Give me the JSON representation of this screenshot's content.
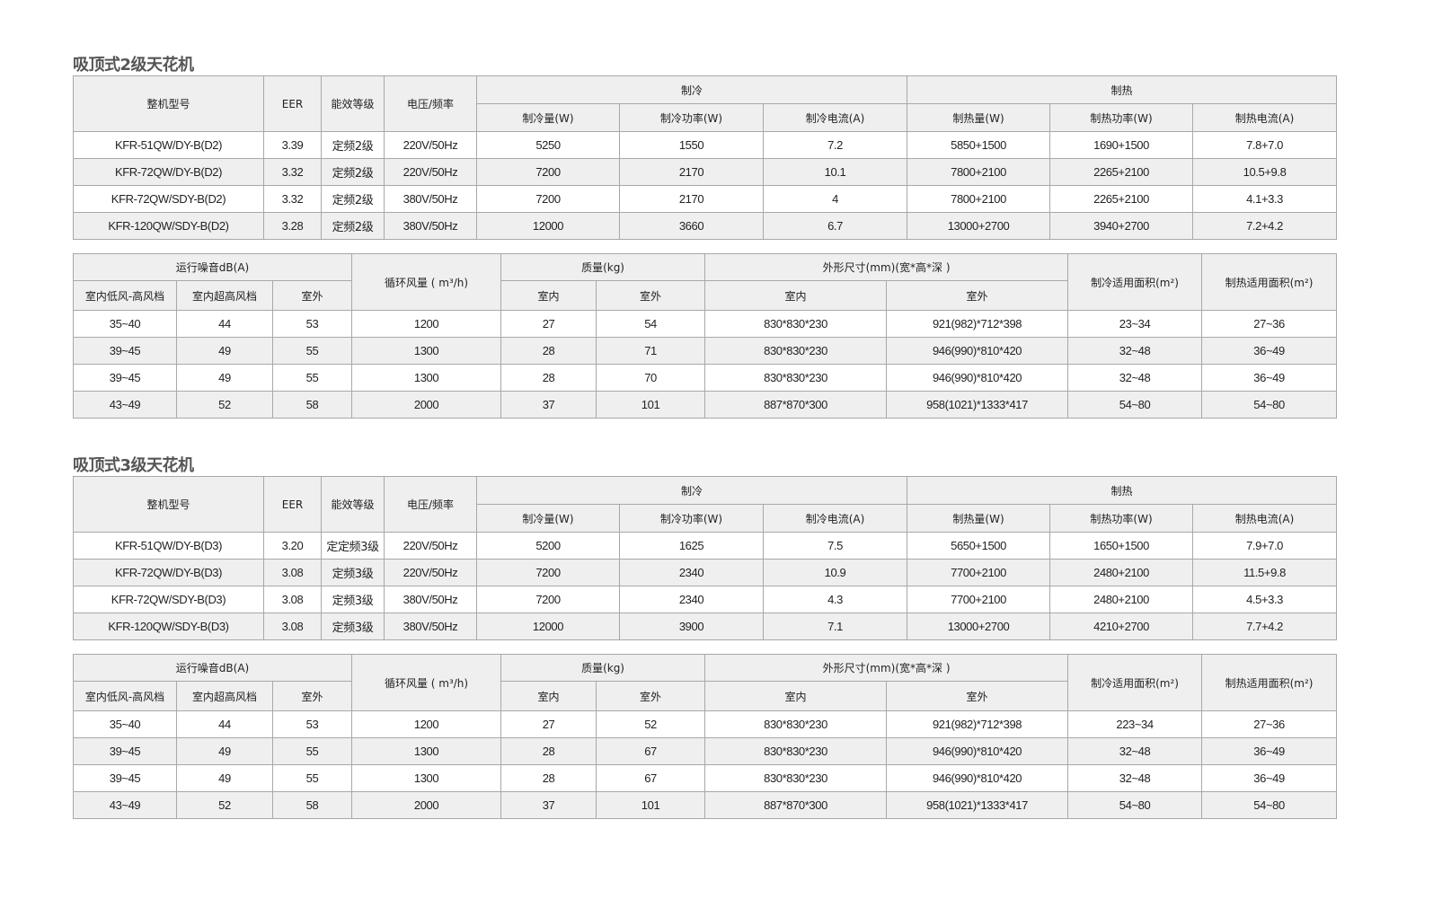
{
  "headers_a": {
    "model": "整机型号",
    "eer": "EER",
    "grade": "能效等级",
    "voltage": "电压/频率",
    "cooling": "制冷",
    "heating": "制热",
    "cool_cap": "制冷量(W)",
    "cool_power": "制冷功率(W)",
    "cool_current": "制冷电流(A)",
    "heat_cap": "制热量(W)",
    "heat_power": "制热功率(W)",
    "heat_current": "制热电流(A)"
  },
  "headers_b": {
    "noise": "运行噪音dB(A)",
    "noise_low_high": "室内低风-高风档",
    "noise_super": "室内超高风档",
    "noise_outdoor": "室外",
    "airflow": "循环风量 ( m³/h)",
    "mass": "质量(kg)",
    "mass_indoor": "室内",
    "mass_outdoor": "室外",
    "dims": "外形尺寸(mm)(宽*高*深 )",
    "dims_indoor": "室内",
    "dims_outdoor": "室外",
    "cool_area": "制冷适用面积(m²)",
    "heat_area": "制热适用面积(m²)"
  },
  "sections": [
    {
      "title": "吸顶式2级天花机",
      "table_a": [
        [
          "KFR-51QW/DY-B(D2)",
          "3.39",
          "定频2级",
          "220V/50Hz",
          "5250",
          "1550",
          "7.2",
          "5850+1500",
          "1690+1500",
          "7.8+7.0"
        ],
        [
          "KFR-72QW/DY-B(D2)",
          "3.32",
          "定频2级",
          "220V/50Hz",
          "7200",
          "2170",
          "10.1",
          "7800+2100",
          "2265+2100",
          "10.5+9.8"
        ],
        [
          "KFR-72QW/SDY-B(D2)",
          "3.32",
          "定频2级",
          "380V/50Hz",
          "7200",
          "2170",
          "4",
          "7800+2100",
          "2265+2100",
          "4.1+3.3"
        ],
        [
          "KFR-120QW/SDY-B(D2)",
          "3.28",
          "定频2级",
          "380V/50Hz",
          "12000",
          "3660",
          "6.7",
          "13000+2700",
          "3940+2700",
          "7.2+4.2"
        ]
      ],
      "table_b": [
        [
          "35~40",
          "44",
          "53",
          "1200",
          "27",
          "54",
          "830*830*230",
          "921(982)*712*398",
          "23~34",
          "27~36"
        ],
        [
          "39~45",
          "49",
          "55",
          "1300",
          "28",
          "71",
          "830*830*230",
          "946(990)*810*420",
          "32~48",
          "36~49"
        ],
        [
          "39~45",
          "49",
          "55",
          "1300",
          "28",
          "70",
          "830*830*230",
          "946(990)*810*420",
          "32~48",
          "36~49"
        ],
        [
          "43~49",
          "52",
          "58",
          "2000",
          "37",
          "101",
          "887*870*300",
          "958(1021)*1333*417",
          "54~80",
          "54~80"
        ]
      ]
    },
    {
      "title": "吸顶式3级天花机",
      "table_a": [
        [
          "KFR-51QW/DY-B(D3)",
          "3.20",
          "定定频3级",
          "220V/50Hz",
          "5200",
          "1625",
          "7.5",
          "5650+1500",
          "1650+1500",
          "7.9+7.0"
        ],
        [
          "KFR-72QW/DY-B(D3)",
          "3.08",
          "定频3级",
          "220V/50Hz",
          "7200",
          "2340",
          "10.9",
          "7700+2100",
          "2480+2100",
          "11.5+9.8"
        ],
        [
          "KFR-72QW/SDY-B(D3)",
          "3.08",
          "定频3级",
          "380V/50Hz",
          "7200",
          "2340",
          "4.3",
          "7700+2100",
          "2480+2100",
          "4.5+3.3"
        ],
        [
          "KFR-120QW/SDY-B(D3)",
          "3.08",
          "定频3级",
          "380V/50Hz",
          "12000",
          "3900",
          "7.1",
          "13000+2700",
          "4210+2700",
          "7.7+4.2"
        ]
      ],
      "table_b": [
        [
          "35~40",
          "44",
          "53",
          "1200",
          "27",
          "52",
          "830*830*230",
          "921(982)*712*398",
          "223~34",
          "27~36"
        ],
        [
          "39~45",
          "49",
          "55",
          "1300",
          "28",
          "67",
          "830*830*230",
          "946(990)*810*420",
          "32~48",
          "36~49"
        ],
        [
          "39~45",
          "49",
          "55",
          "1300",
          "28",
          "67",
          "830*830*230",
          "946(990)*810*420",
          "32~48",
          "36~49"
        ],
        [
          "43~49",
          "52",
          "58",
          "2000",
          "37",
          "101",
          "887*870*300",
          "958(1021)*1333*417",
          "54~80",
          "54~80"
        ]
      ]
    }
  ]
}
